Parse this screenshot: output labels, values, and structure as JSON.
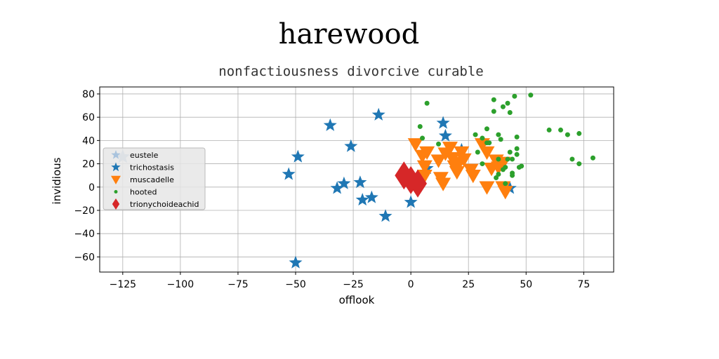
{
  "chart_data": {
    "type": "scatter",
    "title": "harewood",
    "subtitle": "nonfactiousness divorcive curable",
    "xlabel": "offlook",
    "ylabel": "invidious",
    "xlim": [
      -135,
      88
    ],
    "ylim": [
      -73,
      86
    ],
    "xticks": [
      -125,
      -100,
      -75,
      -50,
      -25,
      0,
      25,
      50,
      75
    ],
    "yticks": [
      -60,
      -40,
      -20,
      0,
      20,
      40,
      60,
      80
    ],
    "grid": true,
    "legend_position": "center-left",
    "series": [
      {
        "name": "eustele",
        "marker": "star",
        "color": "#a9c3dd",
        "size": 11,
        "points": [
          [
            -125,
            26
          ]
        ]
      },
      {
        "name": "trichostasis",
        "marker": "star",
        "color": "#1f77b4",
        "size": 10,
        "points": [
          [
            -53,
            11
          ],
          [
            -49,
            26
          ],
          [
            -35,
            53
          ],
          [
            -32,
            -1
          ],
          [
            -29,
            3
          ],
          [
            -26,
            35
          ],
          [
            -22,
            4
          ],
          [
            -21,
            -11
          ],
          [
            -17,
            -9
          ],
          [
            -14,
            62
          ],
          [
            -11,
            -25
          ],
          [
            0,
            -13
          ],
          [
            7,
            16
          ],
          [
            14,
            55
          ],
          [
            15,
            44
          ],
          [
            22,
            32
          ],
          [
            43,
            -1
          ],
          [
            -50,
            -65
          ]
        ]
      },
      {
        "name": "muscadelle",
        "marker": "triangle-down",
        "color": "#ff7f0e",
        "size": 11,
        "points": [
          [
            2,
            37
          ],
          [
            5,
            27
          ],
          [
            6,
            10
          ],
          [
            6,
            18
          ],
          [
            7,
            30
          ],
          [
            12,
            23
          ],
          [
            13,
            8
          ],
          [
            14,
            3
          ],
          [
            15,
            29
          ],
          [
            17,
            34
          ],
          [
            18,
            25
          ],
          [
            19,
            18
          ],
          [
            20,
            13
          ],
          [
            21,
            21
          ],
          [
            22,
            30
          ],
          [
            23,
            24
          ],
          [
            26,
            15
          ],
          [
            27,
            10
          ],
          [
            31,
            37
          ],
          [
            33,
            30
          ],
          [
            35,
            16
          ],
          [
            37,
            23
          ],
          [
            38,
            17
          ],
          [
            40,
            21
          ],
          [
            40,
            0
          ],
          [
            33,
            0
          ],
          [
            41,
            -4
          ]
        ]
      },
      {
        "name": "hooted",
        "marker": "circle",
        "color": "#2ca02c",
        "size": 3.5,
        "points": [
          [
            7,
            72
          ],
          [
            4,
            52
          ],
          [
            5,
            42
          ],
          [
            12,
            37
          ],
          [
            28,
            45
          ],
          [
            31,
            42
          ],
          [
            34,
            38
          ],
          [
            33,
            50
          ],
          [
            36,
            65
          ],
          [
            36,
            75
          ],
          [
            38,
            45
          ],
          [
            39,
            41
          ],
          [
            40,
            69
          ],
          [
            42,
            72
          ],
          [
            43,
            64
          ],
          [
            43,
            30
          ],
          [
            45,
            78
          ],
          [
            46,
            28
          ],
          [
            44,
            24
          ],
          [
            46,
            33
          ],
          [
            42,
            24
          ],
          [
            41,
            17
          ],
          [
            44,
            12
          ],
          [
            44,
            10
          ],
          [
            47,
            17
          ],
          [
            48,
            18
          ],
          [
            38,
            11
          ],
          [
            41,
            3
          ],
          [
            38,
            24
          ],
          [
            37,
            8
          ],
          [
            33,
            38
          ],
          [
            31,
            20
          ],
          [
            29,
            30
          ],
          [
            52,
            79
          ],
          [
            60,
            49
          ],
          [
            65,
            49
          ],
          [
            68,
            45
          ],
          [
            70,
            24
          ],
          [
            73,
            46
          ],
          [
            73,
            20
          ],
          [
            79,
            25
          ],
          [
            46,
            43
          ],
          [
            40,
            15
          ]
        ]
      },
      {
        "name": "trionychoideachid",
        "marker": "diamond",
        "color": "#d62728",
        "size": 13,
        "points": [
          [
            -3,
            10
          ],
          [
            0,
            6
          ],
          [
            3,
            3
          ]
        ]
      }
    ]
  }
}
